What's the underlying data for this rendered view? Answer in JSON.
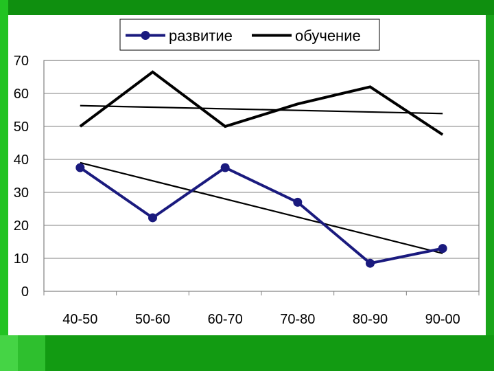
{
  "chart_data": {
    "type": "line",
    "categories": [
      "40-50",
      "50-60",
      "60-70",
      "70-80",
      "80-90",
      "90-00"
    ],
    "ylim": [
      0,
      70
    ],
    "yticks": [
      0,
      10,
      20,
      30,
      40,
      50,
      60,
      70
    ],
    "grid": true,
    "legend_position": "top-center",
    "series": [
      {
        "name": "развитие",
        "values": [
          37.5,
          22.3,
          37.5,
          27.0,
          8.5,
          13.0
        ],
        "color": "#1a1a7e",
        "marker": "circle"
      },
      {
        "name": "обучение",
        "values": [
          50.0,
          66.5,
          50.0,
          56.8,
          62.0,
          47.5
        ],
        "color": "#000000",
        "marker": "none"
      }
    ],
    "trendlines": [
      {
        "of": "развитие",
        "start": 39.0,
        "end": 11.5
      },
      {
        "of": "обучение",
        "start": 56.3,
        "end": 53.9
      }
    ]
  }
}
